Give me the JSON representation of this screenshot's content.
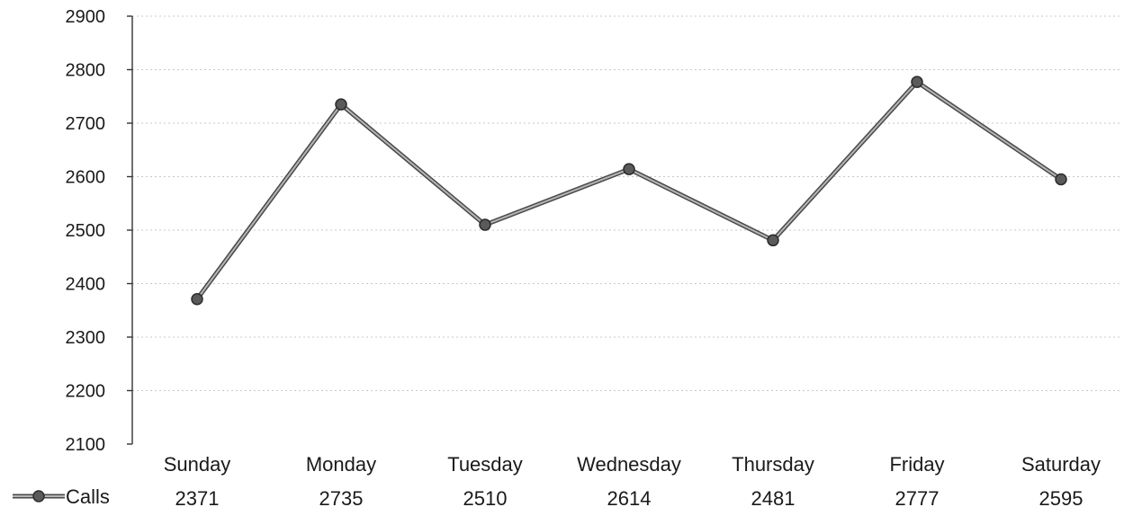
{
  "chart_data": {
    "type": "line",
    "categories": [
      "Sunday",
      "Monday",
      "Tuesday",
      "Wednesday",
      "Thursday",
      "Friday",
      "Saturday"
    ],
    "series": [
      {
        "name": "Calls",
        "values": [
          2371,
          2735,
          2510,
          2614,
          2481,
          2777,
          2595
        ]
      }
    ],
    "table_values": [
      "2371",
      "2735",
      "2510",
      "2614",
      "2481",
      "2777",
      "2595"
    ],
    "yticks": [
      "2100",
      "2200",
      "2300",
      "2400",
      "2500",
      "2600",
      "2700",
      "2800",
      "2900"
    ],
    "ylim": [
      2100,
      2900
    ],
    "grid": true,
    "legend": "data-table-left",
    "colors": {
      "line": "#4a4a4a",
      "line_highlight": "#b5b5b5",
      "marker": "#5a5a5a"
    }
  }
}
